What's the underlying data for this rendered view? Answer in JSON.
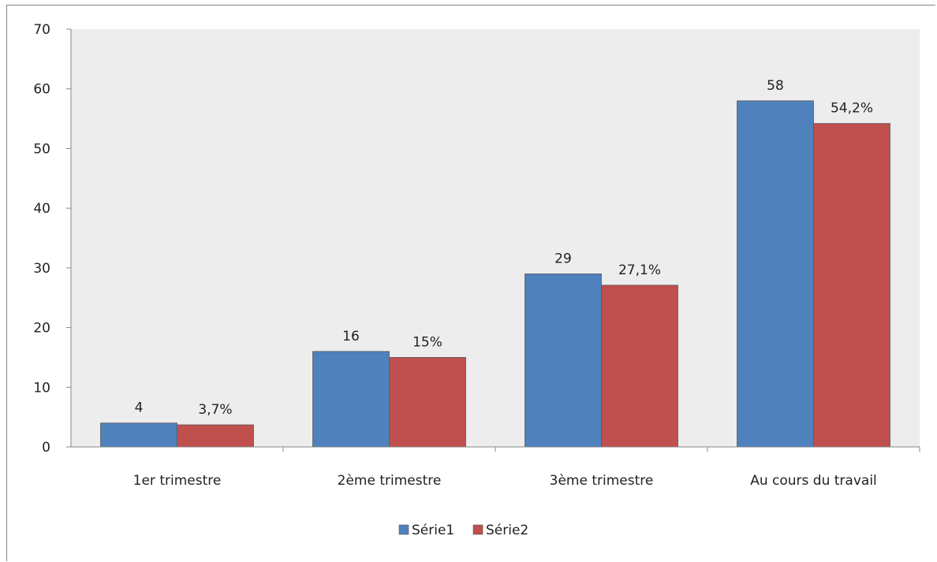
{
  "chart_data": {
    "type": "bar",
    "categories": [
      "1er trimestre",
      "2ème trimestre",
      "3ème trimestre",
      "Au cours du travail"
    ],
    "series": [
      {
        "name": "Série1",
        "values": [
          4,
          16,
          29,
          58
        ],
        "labels": [
          "4",
          "16",
          "29",
          "58"
        ],
        "color": "#4f81bd"
      },
      {
        "name": "Série2",
        "values": [
          3.7,
          15,
          27.1,
          54.2
        ],
        "labels": [
          "3,7%",
          "15%",
          "27,1%",
          "54,2%"
        ],
        "color": "#c0504d"
      }
    ],
    "yticks": [
      "0",
      "10",
      "20",
      "30",
      "40",
      "50",
      "60",
      "70"
    ],
    "ylim": [
      0,
      70
    ],
    "grid": false,
    "legend_position": "bottom",
    "plot_background": "#ededed"
  }
}
